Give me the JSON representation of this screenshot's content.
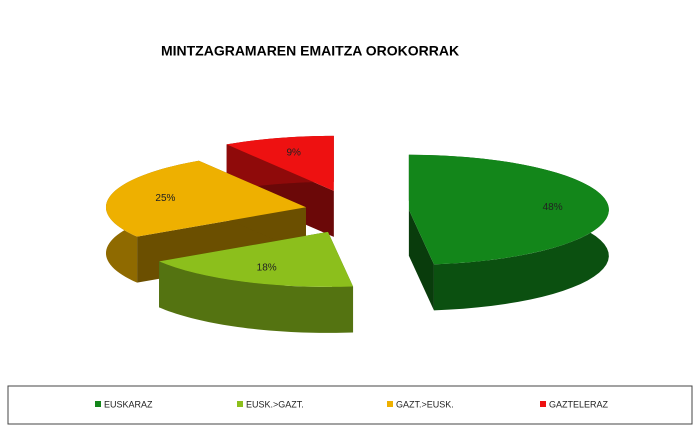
{
  "chart_data": {
    "type": "pie",
    "title": "MINTZAGRAMAREN EMAITZA OROKORRAK",
    "categories": [
      "EUSKARAZ",
      "EUSK.>GAZT.",
      "GAZT.>EUSK.",
      "GAZTELERAZ"
    ],
    "values": [
      48,
      18,
      25,
      9
    ],
    "value_labels": [
      "48%",
      "18%",
      "25%",
      "9%"
    ],
    "colors": [
      "#13861a",
      "#8cbf1c",
      "#eeb000",
      "#ee1111"
    ],
    "legend": "bottom"
  }
}
